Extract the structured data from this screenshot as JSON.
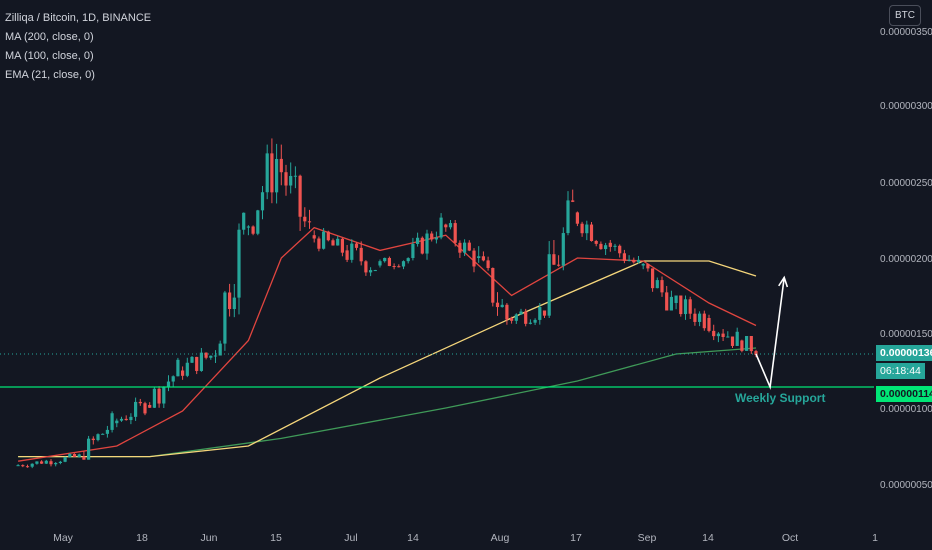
{
  "legend": {
    "symbol": "Zilliqa / Bitcoin, 1D, BINANCE",
    "ma200": "MA (200, close, 0)",
    "ma100": "MA (100, close, 0)",
    "ema21": "EMA (21, close, 0)"
  },
  "currency_badge": "BTC",
  "price_axis": {
    "ticks": [
      "0.00000350",
      "0.00000300",
      "0.00000250",
      "0.00000200",
      "0.00000150",
      "0.00000100",
      "0.00000050"
    ],
    "current_price": "0.00000136",
    "countdown": "06:18:44",
    "support_price": "0.00000114"
  },
  "time_axis": {
    "labels": [
      "May",
      "18",
      "Jun",
      "15",
      "Jul",
      "14",
      "Aug",
      "17",
      "Sep",
      "14",
      "Oct",
      "1"
    ]
  },
  "annotation": {
    "support_label": "Weekly Support"
  },
  "colors": {
    "background": "#131722",
    "up": "#26a69a",
    "down": "#ef5350",
    "ema21": "#e0453f",
    "ma100": "#f5d67b",
    "ma200": "#3f9a58",
    "support_line": "#00e676",
    "arrow": "#ffffff"
  },
  "chart_data": {
    "type": "candlestick",
    "title": "Zilliqa / Bitcoin, 1D, BINANCE",
    "x_range": [
      "2020-04-20",
      "2020-10-01"
    ],
    "ylim": [
      3e-07,
      3.6e-06
    ],
    "grid": false,
    "ohlc_weekly_approx": [
      {
        "x": "2020-04-20",
        "o": 6.2e-07,
        "h": 6.8e-07,
        "l": 5.8e-07,
        "c": 6.5e-07
      },
      {
        "x": "2020-04-27",
        "o": 6.5e-07,
        "h": 7.2e-07,
        "l": 6e-07,
        "c": 6.8e-07
      },
      {
        "x": "2020-05-04",
        "o": 6.8e-07,
        "h": 9.8e-07,
        "l": 6.6e-07,
        "c": 9e-07
      },
      {
        "x": "2020-05-11",
        "o": 9e-07,
        "h": 1.08e-06,
        "l": 8.2e-07,
        "c": 1.02e-06
      },
      {
        "x": "2020-05-18",
        "o": 1.02e-06,
        "h": 1.4e-06,
        "l": 1e-06,
        "c": 1.25e-06
      },
      {
        "x": "2020-05-25",
        "o": 1.25e-06,
        "h": 1.4e-06,
        "l": 1.08e-06,
        "c": 1.35e-06
      },
      {
        "x": "2020-06-01",
        "o": 1.35e-06,
        "h": 2.3e-06,
        "l": 1.3e-06,
        "c": 2.2e-06
      },
      {
        "x": "2020-06-08",
        "o": 2.2e-06,
        "h": 3.05e-06,
        "l": 2.15e-06,
        "c": 2.65e-06
      },
      {
        "x": "2020-06-15",
        "o": 2.65e-06,
        "h": 2.85e-06,
        "l": 2.05e-06,
        "c": 2.15e-06
      },
      {
        "x": "2020-06-22",
        "o": 2.15e-06,
        "h": 2.25e-06,
        "l": 1.95e-06,
        "c": 2.05e-06
      },
      {
        "x": "2020-06-29",
        "o": 2.05e-06,
        "h": 2.15e-06,
        "l": 1.75e-06,
        "c": 1.95e-06
      },
      {
        "x": "2020-07-06",
        "o": 1.95e-06,
        "h": 2.05e-06,
        "l": 1.85e-06,
        "c": 2e-06
      },
      {
        "x": "2020-07-13",
        "o": 2e-06,
        "h": 2.3e-06,
        "l": 1.95e-06,
        "c": 2.22e-06
      },
      {
        "x": "2020-07-20",
        "o": 2.22e-06,
        "h": 2.25e-06,
        "l": 1.9e-06,
        "c": 2e-06
      },
      {
        "x": "2020-07-27",
        "o": 2e-06,
        "h": 2.1e-06,
        "l": 1.5e-06,
        "c": 1.6e-06
      },
      {
        "x": "2020-08-03",
        "o": 1.6e-06,
        "h": 1.7e-06,
        "l": 1.4e-06,
        "c": 1.65e-06
      },
      {
        "x": "2020-08-10",
        "o": 1.65e-06,
        "h": 2.45e-06,
        "l": 1.6e-06,
        "c": 2.3e-06
      },
      {
        "x": "2020-08-17",
        "o": 2.3e-06,
        "h": 2.4e-06,
        "l": 2e-06,
        "c": 2.1e-06
      },
      {
        "x": "2020-08-24",
        "o": 2.1e-06,
        "h": 2.15e-06,
        "l": 1.85e-06,
        "c": 1.95e-06
      },
      {
        "x": "2020-08-31",
        "o": 1.95e-06,
        "h": 2.1e-06,
        "l": 1.65e-06,
        "c": 1.7e-06
      },
      {
        "x": "2020-09-07",
        "o": 1.7e-06,
        "h": 1.75e-06,
        "l": 1.38e-06,
        "c": 1.6e-06
      },
      {
        "x": "2020-09-14",
        "o": 1.6e-06,
        "h": 1.75e-06,
        "l": 1.4e-06,
        "c": 1.45e-06
      },
      {
        "x": "2020-09-21",
        "o": 1.45e-06,
        "h": 1.48e-06,
        "l": 1.22e-06,
        "c": 1.36e-06
      }
    ],
    "indicators": [
      {
        "name": "EMA (21, close, 0)",
        "points": [
          [
            "2020-04-20",
            6.5e-07
          ],
          [
            "2020-05-11",
            7.5e-07
          ],
          [
            "2020-05-25",
            9.8e-07
          ],
          [
            "2020-06-08",
            1.45e-06
          ],
          [
            "2020-06-15",
            2e-06
          ],
          [
            "2020-06-22",
            2.2e-06
          ],
          [
            "2020-07-06",
            2.05e-06
          ],
          [
            "2020-07-20",
            2.15e-06
          ],
          [
            "2020-08-03",
            1.75e-06
          ],
          [
            "2020-08-17",
            2e-06
          ],
          [
            "2020-08-31",
            1.98e-06
          ],
          [
            "2020-09-14",
            1.7e-06
          ],
          [
            "2020-09-24",
            1.55e-06
          ]
        ]
      },
      {
        "name": "MA (100, close, 0)",
        "points": [
          [
            "2020-04-20",
            6.8e-07
          ],
          [
            "2020-05-18",
            6.8e-07
          ],
          [
            "2020-06-08",
            7.5e-07
          ],
          [
            "2020-07-06",
            1.2e-06
          ],
          [
            "2020-08-03",
            1.6e-06
          ],
          [
            "2020-08-31",
            1.98e-06
          ],
          [
            "2020-09-14",
            1.98e-06
          ],
          [
            "2020-09-24",
            1.88e-06
          ]
        ]
      },
      {
        "name": "MA (200, close, 0)",
        "points": [
          [
            "2020-04-20",
            6.8e-07
          ],
          [
            "2020-05-18",
            6.8e-07
          ],
          [
            "2020-06-15",
            8e-07
          ],
          [
            "2020-07-20",
            1e-06
          ],
          [
            "2020-08-17",
            1.18e-06
          ],
          [
            "2020-09-07",
            1.36e-06
          ],
          [
            "2020-09-24",
            1.4e-06
          ]
        ]
      }
    ],
    "support_level": 1.14e-06,
    "projection_arrow": [
      [
        "2020-09-24",
        1.36e-06
      ],
      [
        "2020-09-27",
        1.14e-06
      ],
      [
        "2020-09-30",
        1.87e-06
      ]
    ]
  }
}
